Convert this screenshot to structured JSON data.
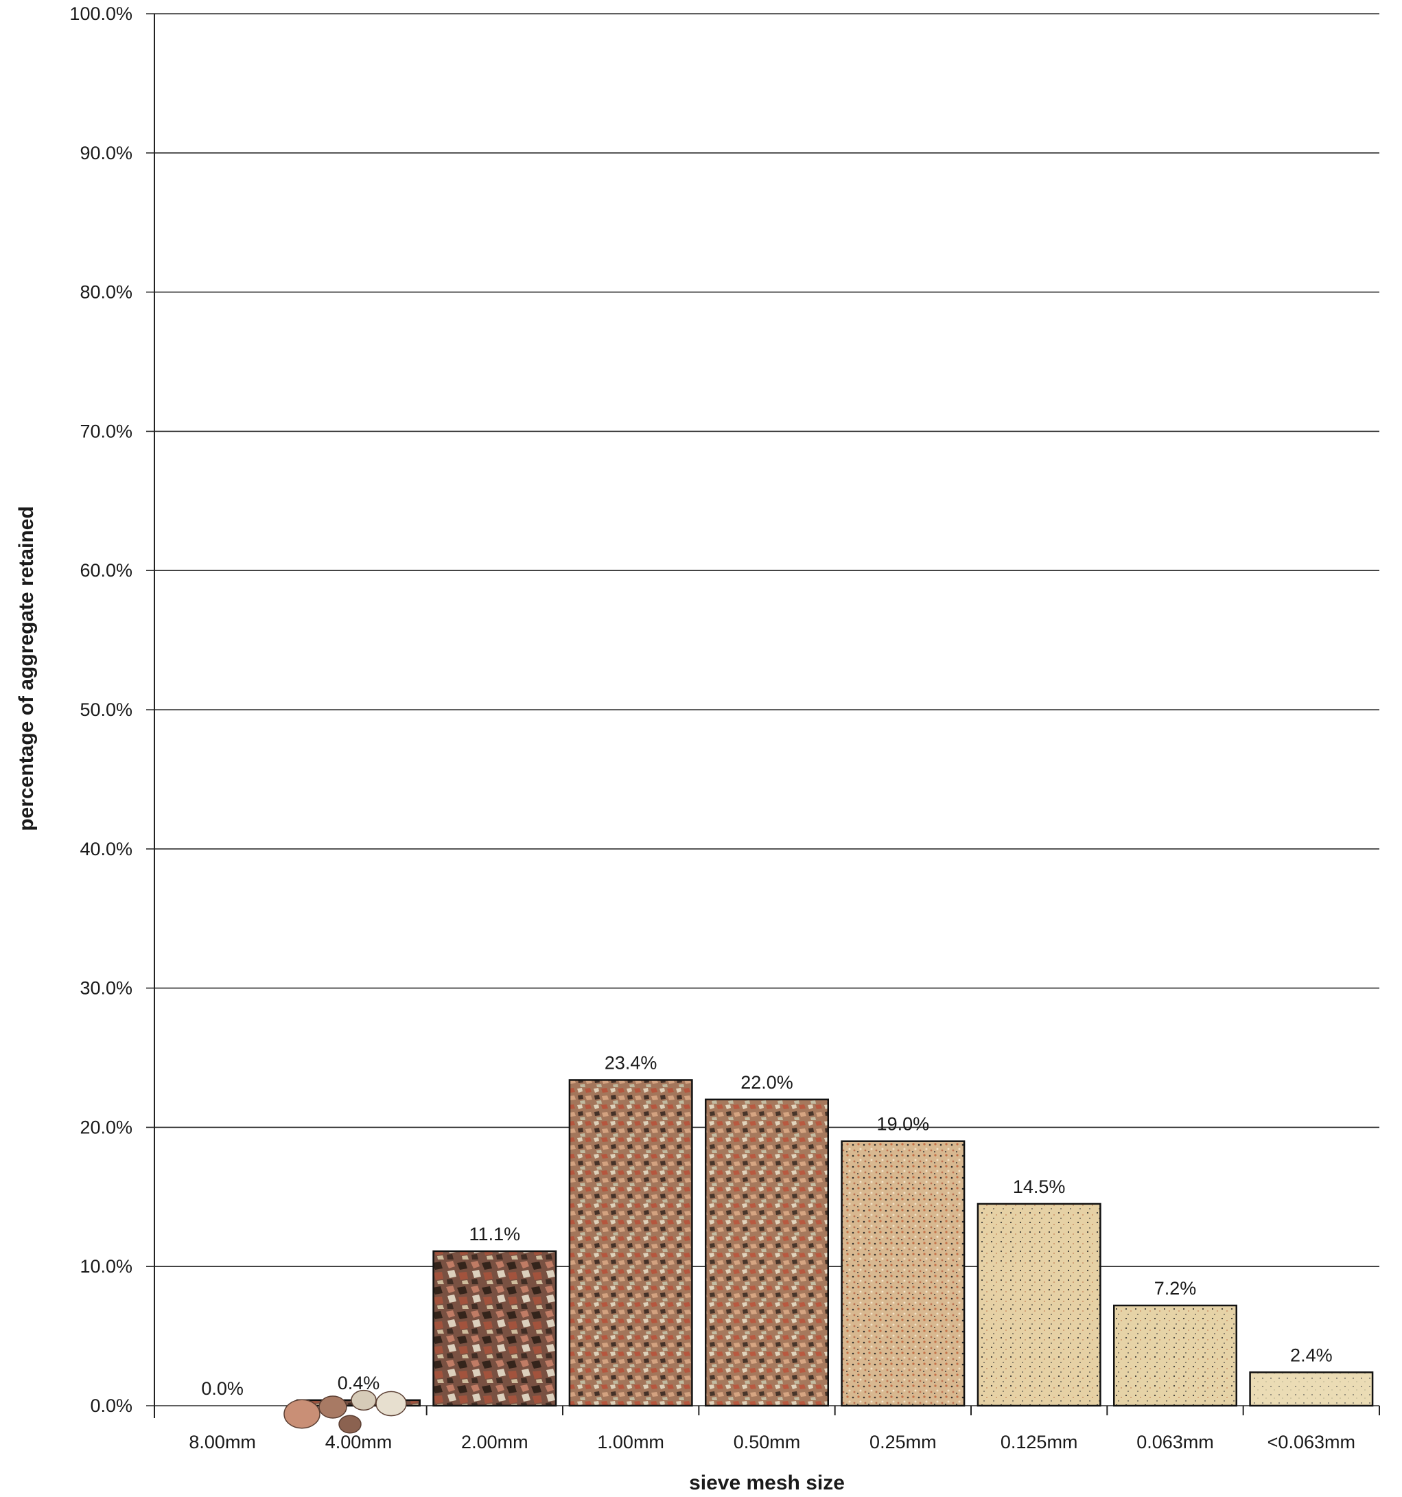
{
  "chart_data": {
    "type": "bar",
    "xlabel": "sieve mesh size",
    "ylabel": "percentage of aggregate retained",
    "ylim": [
      0,
      100
    ],
    "y_ticks": [
      "0.0%",
      "10.0%",
      "20.0%",
      "30.0%",
      "40.0%",
      "50.0%",
      "60.0%",
      "70.0%",
      "80.0%",
      "90.0%",
      "100.0%"
    ],
    "grid": true,
    "categories": [
      "8.00mm",
      "4.00mm",
      "2.00mm",
      "1.00mm",
      "0.50mm",
      "0.25mm",
      "0.125mm",
      "0.063mm",
      "<0.063mm"
    ],
    "values": [
      0.0,
      0.4,
      11.1,
      23.4,
      22.0,
      19.0,
      14.5,
      7.2,
      2.4
    ],
    "data_labels": [
      "0.0%",
      "0.4%",
      "11.1%",
      "23.4%",
      "22.0%",
      "19.0%",
      "14.5%",
      "7.2%",
      "2.4%"
    ],
    "bar_fill_colors": [
      "#8a6a5a",
      "#7a5548",
      "#6b4433",
      "#9a6a50",
      "#b88a68",
      "#d8b88e",
      "#e4cc9e",
      "#e9dab2",
      "#e8e0bc"
    ],
    "grain_colors": [
      "#f1eadc",
      "#3a2a22",
      "#b3583f",
      "#d98f6d",
      "#1c1c1c",
      "#efe4c8"
    ]
  }
}
